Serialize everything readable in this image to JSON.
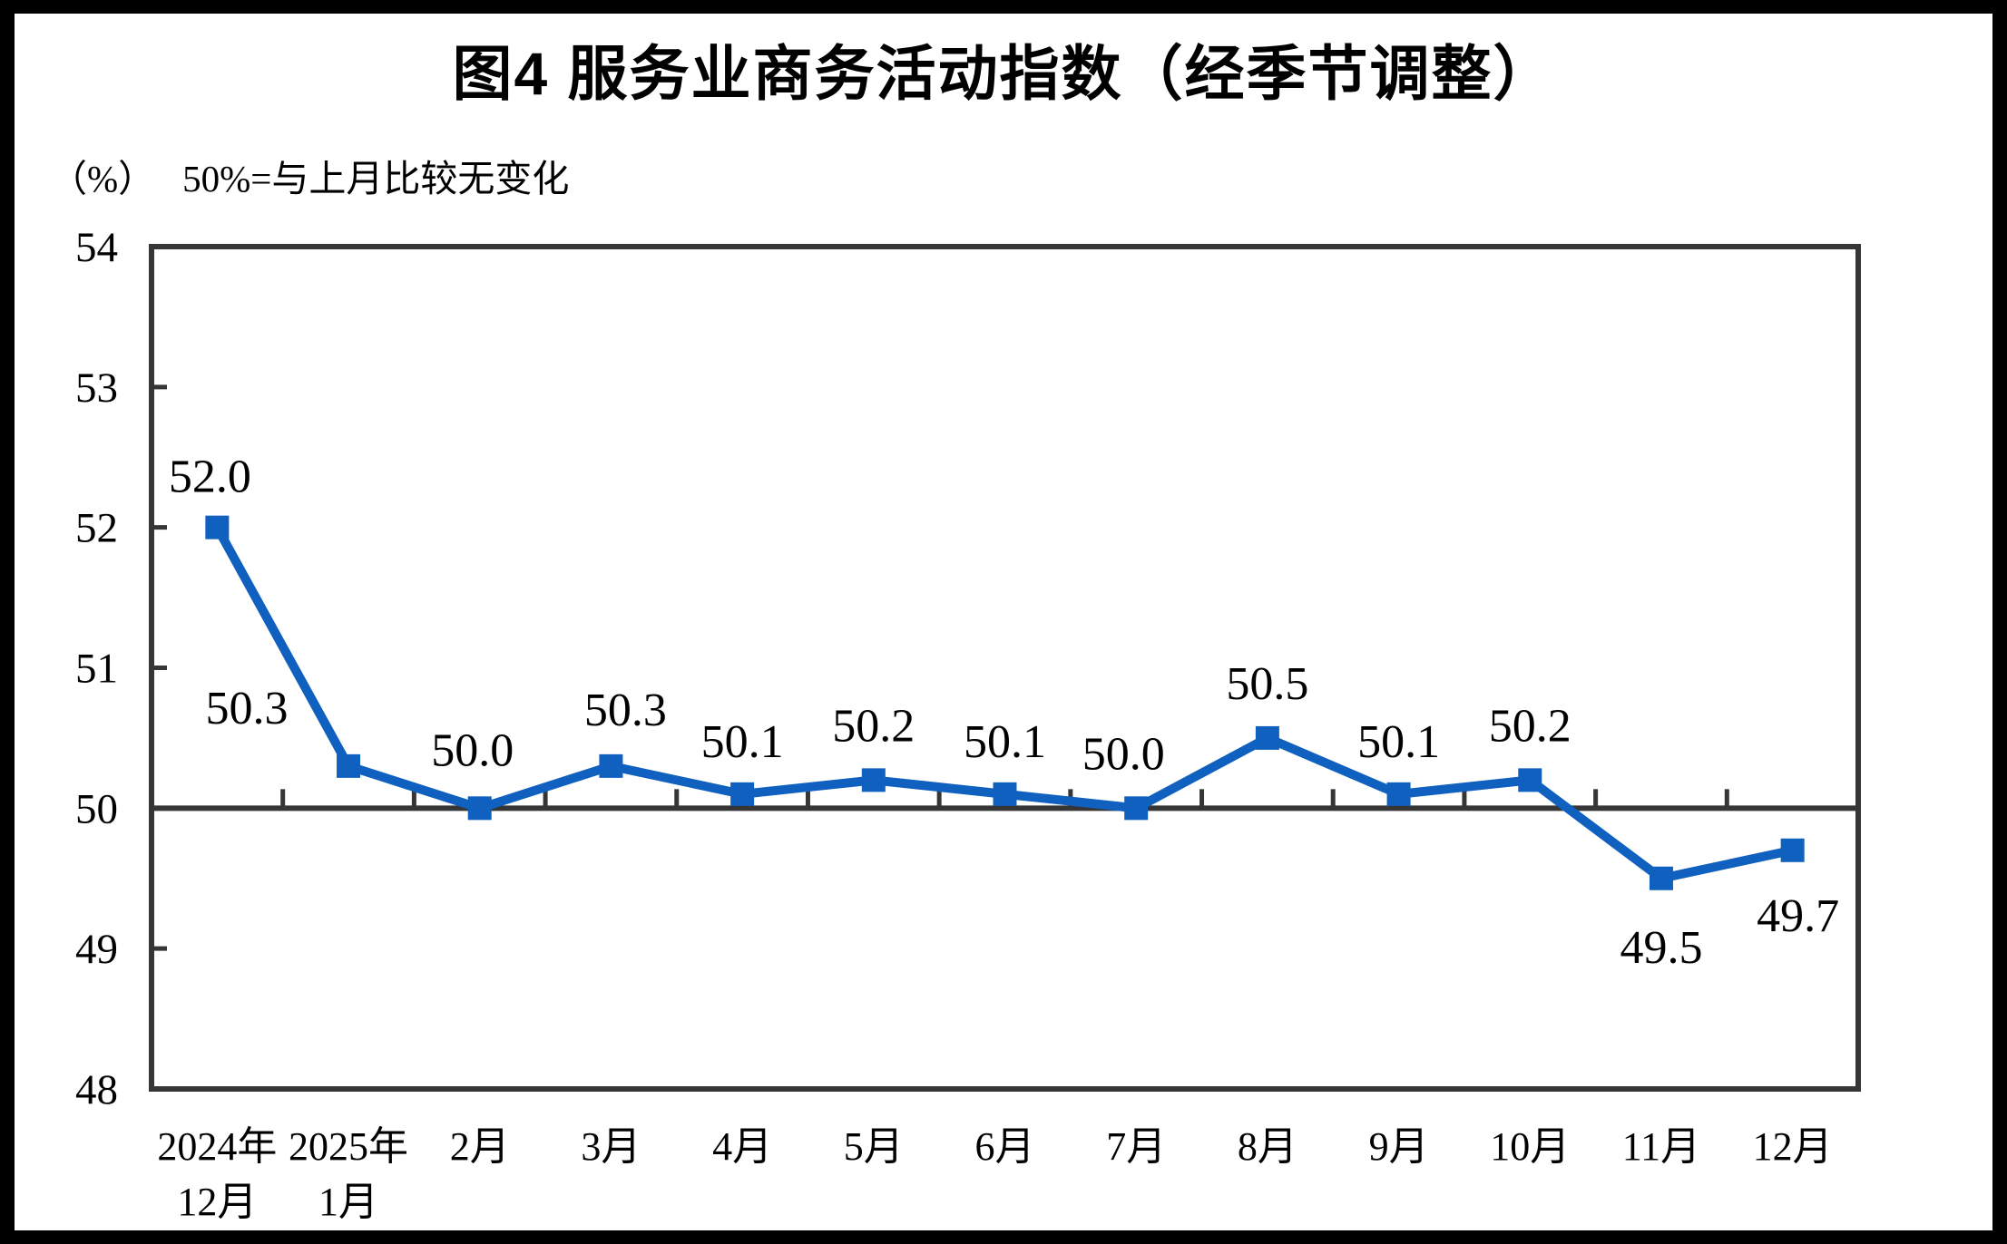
{
  "chart_data": {
    "type": "line",
    "title": "图4 服务业商务活动指数（经季节调整）",
    "unit_label": "（%）",
    "note": "50%=与上月比较无变化",
    "categories": [
      "2024年\n12月",
      "2025年\n1月",
      "2月",
      "3月",
      "4月",
      "5月",
      "6月",
      "7月",
      "8月",
      "9月",
      "10月",
      "11月",
      "12月"
    ],
    "series": [
      {
        "name": "服务业商务活动指数",
        "values": [
          52.0,
          50.3,
          50.0,
          50.3,
          50.1,
          50.2,
          50.1,
          50.0,
          50.5,
          50.1,
          50.2,
          49.5,
          49.7
        ]
      }
    ],
    "data_labels": [
      "52.0",
      "50.3",
      "50.0",
      "50.3",
      "50.1",
      "50.2",
      "50.1",
      "50.0",
      "50.5",
      "50.1",
      "50.2",
      "49.5",
      "49.7"
    ],
    "ylim": [
      48,
      54
    ],
    "ytick_step": 1,
    "yticks": [
      48,
      49,
      50,
      51,
      52,
      53,
      54
    ],
    "reference_line": 50,
    "grid": "off",
    "legend": "none",
    "line_color": "#1060c0",
    "axis_color": "#363636",
    "text_color": "#000000",
    "marker": "square"
  }
}
